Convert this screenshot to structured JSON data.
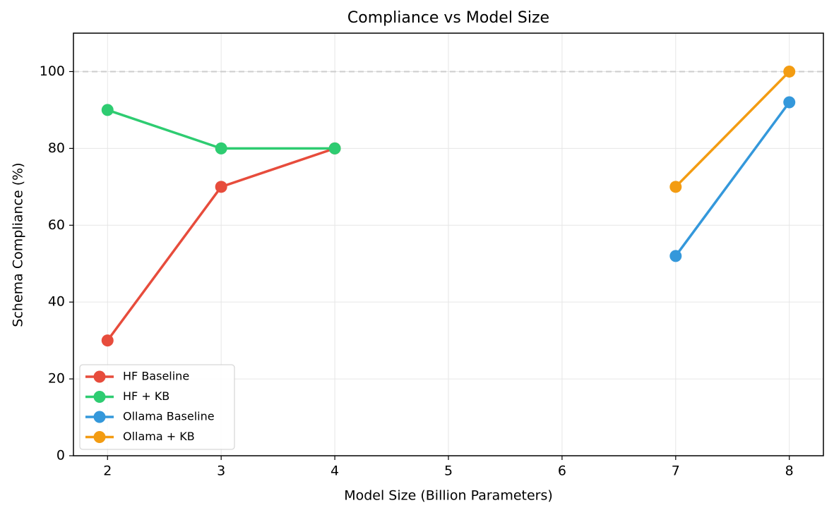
{
  "chart_data": {
    "type": "line",
    "title": "Compliance vs Model Size",
    "x_label": "Model Size (Billion Parameters)",
    "y_label": "Schema Compliance (%)",
    "series": [
      {
        "name": "HF Baseline",
        "color": "#e74c3c",
        "x": [
          2,
          3,
          4
        ],
        "values": [
          30,
          70,
          80
        ]
      },
      {
        "name": "HF + KB",
        "color": "#2ecc71",
        "x": [
          2,
          3,
          4
        ],
        "values": [
          90,
          80,
          80
        ]
      },
      {
        "name": "Ollama Baseline",
        "color": "#3498db",
        "x": [
          7,
          8
        ],
        "values": [
          52,
          92
        ]
      },
      {
        "name": "Ollama + KB",
        "color": "#f39c12",
        "x": [
          7,
          8
        ],
        "values": [
          70,
          100
        ]
      }
    ],
    "xlim": [
      1.7,
      8.3
    ],
    "xticks": [
      2,
      3,
      4,
      5,
      6,
      7,
      8
    ],
    "ylim": [
      0,
      110
    ],
    "yticks": [
      0,
      20,
      40,
      60,
      80,
      100
    ],
    "hline": {
      "value": 100,
      "color": "#cccccc"
    },
    "grid": true,
    "legend": "lower left"
  }
}
